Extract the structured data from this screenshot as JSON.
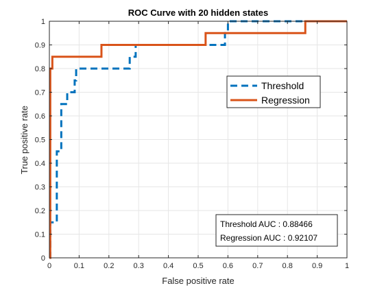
{
  "chart_data": {
    "type": "line",
    "title": "ROC Curve with 20 hidden states",
    "xlabel": "False positive rate",
    "ylabel": "True positive rate",
    "xlim": [
      0,
      1
    ],
    "ylim": [
      0,
      1
    ],
    "xticks": [
      "0",
      "0.1",
      "0.2",
      "0.3",
      "0.4",
      "0.5",
      "0.6",
      "0.7",
      "0.8",
      "0.9",
      "1"
    ],
    "yticks": [
      "0",
      "0.1",
      "0.2",
      "0.3",
      "0.4",
      "0.5",
      "0.6",
      "0.7",
      "0.8",
      "0.9",
      "1"
    ],
    "grid": true,
    "legend_position": "upper-right",
    "series": [
      {
        "name": "Threshold",
        "color": "#0072BD",
        "line_style": "dashed",
        "x": [
          0,
          0.003,
          0.003,
          0.01,
          0.01,
          0.025,
          0.025,
          0.03,
          0.03,
          0.04,
          0.04,
          0.045,
          0.045,
          0.06,
          0.06,
          0.085,
          0.085,
          0.09,
          0.09,
          0.27,
          0.27,
          0.29,
          0.29,
          0.55,
          0.55,
          0.59,
          0.59,
          0.6,
          0.6,
          1
        ],
        "y": [
          0,
          0,
          0.15,
          0.15,
          0.15,
          0.15,
          0.45,
          0.45,
          0.45,
          0.45,
          0.65,
          0.65,
          0.65,
          0.65,
          0.7,
          0.7,
          0.75,
          0.75,
          0.8,
          0.8,
          0.85,
          0.85,
          0.9,
          0.9,
          0.9,
          0.9,
          0.95,
          0.95,
          1,
          1
        ]
      },
      {
        "name": "Regression",
        "color": "#D95319",
        "line_style": "solid",
        "x": [
          0,
          0.003,
          0.003,
          0.01,
          0.01,
          0.175,
          0.175,
          0.525,
          0.525,
          0.86,
          0.86,
          1
        ],
        "y": [
          0,
          0,
          0.8,
          0.8,
          0.85,
          0.85,
          0.9,
          0.9,
          0.95,
          0.95,
          1,
          1
        ]
      }
    ],
    "annotation": {
      "lines": [
        "Threshold AUC : 0.88466",
        "Regression AUC : 0.92107"
      ],
      "position": "lower-right"
    }
  },
  "colors": {
    "axis": "#262626",
    "grid": "#e6e6e6",
    "background": "#ffffff"
  }
}
